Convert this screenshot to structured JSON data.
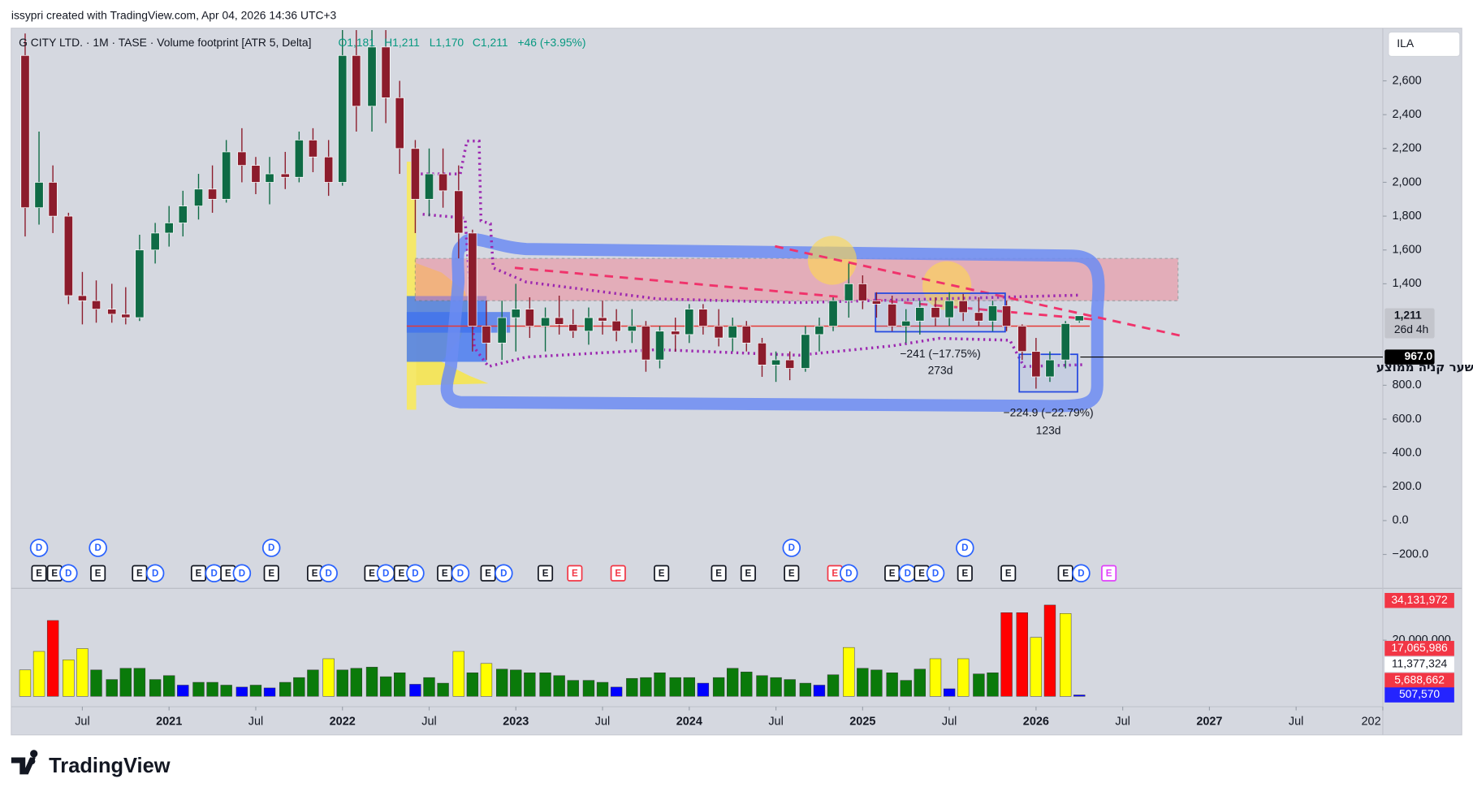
{
  "header": "issypri created with TradingView.com, Apr 04, 2026 14:36 UTC+3",
  "footer_logo": "TradingView",
  "chart_data": {
    "type": "candlestick",
    "title": "G CITY LTD. · 1M · TASE · Volume footprint [ATR 5, Delta]",
    "ohlc_legend": [
      "O1,181",
      "H1,211",
      "L1,170",
      "C1,211"
    ],
    "change": "+46 (+3.95%)",
    "currency": "ILA",
    "up_color": "#0f6b45",
    "down_color": "#8c1c2c",
    "grid": false,
    "x": [
      2020.17,
      2020.25,
      2020.33,
      2020.42,
      2020.5,
      2020.58,
      2020.67,
      2020.75,
      2020.83,
      2020.92,
      2021.0,
      2021.08,
      2021.17,
      2021.25,
      2021.33,
      2021.42,
      2021.5,
      2021.58,
      2021.67,
      2021.75,
      2021.83,
      2021.92,
      2022.0,
      2022.08,
      2022.17,
      2022.25,
      2022.33,
      2022.42,
      2022.5,
      2022.58,
      2022.67,
      2022.75,
      2022.83,
      2022.92,
      2023.0,
      2023.08,
      2023.17,
      2023.25,
      2023.33,
      2023.42,
      2023.5,
      2023.58,
      2023.67,
      2023.75,
      2023.83,
      2023.92,
      2024.0,
      2024.08,
      2024.17,
      2024.25,
      2024.33,
      2024.42,
      2024.5,
      2024.58,
      2024.67,
      2024.75,
      2024.83,
      2024.92,
      2025.0,
      2025.08,
      2025.17,
      2025.25,
      2025.33,
      2025.42,
      2025.5,
      2025.58,
      2025.67,
      2025.75,
      2025.83,
      2025.92,
      2026.0,
      2026.08,
      2026.17,
      2026.25
    ],
    "open": [
      2750,
      1850,
      2000,
      1800,
      1330,
      1300,
      1250,
      1220,
      1200,
      1600,
      1700,
      1760,
      1860,
      1960,
      1900,
      2180,
      2100,
      2000,
      2050,
      2030,
      2250,
      2150,
      2000,
      2750,
      2450,
      2800,
      2500,
      2200,
      1900,
      2050,
      1950,
      1700,
      1150,
      1050,
      1200,
      1250,
      1150,
      1200,
      1160,
      1120,
      1200,
      1180,
      1120,
      1150,
      950,
      1120,
      1100,
      1250,
      1150,
      1080,
      1150,
      1050,
      920,
      950,
      900,
      1100,
      1150,
      1300,
      1400,
      1300,
      1280,
      1150,
      1180,
      1260,
      1200,
      1300,
      1230,
      1180,
      1270,
      1150,
      1000,
      850,
      950,
      1181
    ],
    "high": [
      2880,
      2300,
      2100,
      1820,
      1470,
      1420,
      1400,
      1380,
      1690,
      1760,
      1860,
      1950,
      2050,
      2100,
      2250,
      2320,
      2150,
      2150,
      2180,
      2300,
      2320,
      2250,
      2900,
      2900,
      2900,
      2900,
      2600,
      2250,
      2200,
      2200,
      2100,
      1720,
      1300,
      1300,
      1400,
      1320,
      1260,
      1330,
      1250,
      1260,
      1300,
      1250,
      1250,
      1180,
      1150,
      1200,
      1280,
      1280,
      1250,
      1200,
      1180,
      1080,
      1000,
      1000,
      1150,
      1200,
      1320,
      1520,
      1450,
      1350,
      1330,
      1250,
      1300,
      1320,
      1350,
      1340,
      1320,
      1300,
      1300,
      1160,
      1080,
      1000,
      1180,
      1211
    ],
    "low": [
      1680,
      1750,
      1700,
      1280,
      1160,
      1170,
      1170,
      1160,
      1180,
      1520,
      1620,
      1680,
      1780,
      1820,
      1880,
      2000,
      1930,
      1870,
      1960,
      2000,
      2060,
      1920,
      1980,
      2300,
      2300,
      2350,
      2050,
      1700,
      1800,
      1850,
      1550,
      1000,
      950,
      950,
      1000,
      1080,
      1000,
      1100,
      1080,
      1040,
      1100,
      1060,
      1050,
      880,
      900,
      1000,
      1050,
      1100,
      1030,
      1000,
      1000,
      850,
      820,
      830,
      880,
      1000,
      1120,
      1200,
      1250,
      1200,
      1120,
      1050,
      1100,
      1150,
      1150,
      1180,
      1150,
      1120,
      1120,
      950,
      780,
      820,
      900,
      1170
    ],
    "close": [
      1850,
      2000,
      1800,
      1330,
      1300,
      1250,
      1220,
      1200,
      1600,
      1700,
      1760,
      1860,
      1960,
      1900,
      2180,
      2100,
      2000,
      2050,
      2030,
      2250,
      2150,
      2000,
      2750,
      2450,
      2800,
      2500,
      2200,
      1900,
      2050,
      1950,
      1700,
      1150,
      1050,
      1200,
      1250,
      1150,
      1200,
      1160,
      1120,
      1200,
      1180,
      1120,
      1150,
      950,
      1120,
      1100,
      1250,
      1150,
      1080,
      1150,
      1050,
      920,
      950,
      900,
      1100,
      1150,
      1300,
      1400,
      1300,
      1280,
      1150,
      1180,
      1260,
      1200,
      1300,
      1230,
      1180,
      1270,
      1150,
      1000,
      850,
      950,
      1165,
      1211
    ],
    "xlim": [
      2020.09,
      2028.0
    ],
    "xticks": [
      {
        "value": 2020.5,
        "label": "Jul"
      },
      2021,
      {
        "value": 2021.5,
        "label": "Jul"
      },
      2022,
      {
        "value": 2022.5,
        "label": "Jul"
      },
      2023,
      {
        "value": 2023.5,
        "label": "Jul"
      },
      2024,
      {
        "value": 2024.5,
        "label": "Jul"
      },
      2025,
      {
        "value": 2025.5,
        "label": "Jul"
      },
      2026,
      {
        "value": 2026.5,
        "label": "Jul"
      },
      2027,
      {
        "value": 2027.5,
        "label": "Jul"
      },
      {
        "value": 2028,
        "label": "202"
      }
    ],
    "ylim": [
      -378,
      2911
    ],
    "yticks": [
      {
        "value": -200,
        "label": "−200.0"
      },
      {
        "value": 0,
        "label": "0.0"
      },
      {
        "value": 200,
        "label": "200.0"
      },
      {
        "value": 400,
        "label": "400.0"
      },
      {
        "value": 600,
        "label": "600.0"
      },
      {
        "value": 800,
        "label": "800.0"
      },
      {
        "value": 1400,
        "label": "1,400"
      },
      {
        "value": 1600,
        "label": "1,600"
      },
      {
        "value": 1800,
        "label": "1,800"
      },
      {
        "value": 2000,
        "label": "2,000"
      },
      {
        "value": 2200,
        "label": "2,200"
      },
      {
        "value": 2400,
        "label": "2,400"
      },
      {
        "value": 2600,
        "label": "2,600"
      }
    ],
    "price_lines": [
      {
        "value": 1211,
        "label": "1,211",
        "sublabel": "26d 4h",
        "color": "#c3c5cc"
      },
      {
        "value": 967,
        "label": "967.0",
        "color": "#000000",
        "note": "שער קניה ממוצע"
      }
    ],
    "annotations": [
      "−241 (−17.75%)",
      "273d",
      "−224.9 (−22.79%)",
      "123d"
    ],
    "event_color": "#131722",
    "events_top": [
      {
        "x": 2020.25,
        "label": "D"
      },
      {
        "x": 2020.59,
        "label": "D"
      },
      {
        "x": 2021.59,
        "label": "D"
      },
      {
        "x": 2024.59,
        "label": "D"
      },
      {
        "x": 2025.59,
        "label": "D"
      }
    ],
    "events": [
      {
        "x": 2020.25,
        "label": "E"
      },
      {
        "x": 2020.34,
        "label": "E"
      },
      {
        "x": 2020.42,
        "label": "D"
      },
      {
        "x": 2020.59,
        "label": "E"
      },
      {
        "x": 2020.83,
        "label": "E"
      },
      {
        "x": 2020.92,
        "label": "D"
      },
      {
        "x": 2021.17,
        "label": "E"
      },
      {
        "x": 2021.26,
        "label": "D"
      },
      {
        "x": 2021.34,
        "label": "E"
      },
      {
        "x": 2021.42,
        "label": "D"
      },
      {
        "x": 2021.59,
        "label": "E"
      },
      {
        "x": 2021.84,
        "label": "E"
      },
      {
        "x": 2021.92,
        "label": "D"
      },
      {
        "x": 2022.17,
        "label": "E"
      },
      {
        "x": 2022.25,
        "label": "D"
      },
      {
        "x": 2022.34,
        "label": "E"
      },
      {
        "x": 2022.42,
        "label": "D"
      },
      {
        "x": 2022.59,
        "label": "E"
      },
      {
        "x": 2022.68,
        "label": "D"
      },
      {
        "x": 2022.84,
        "label": "E"
      },
      {
        "x": 2022.93,
        "label": "D"
      },
      {
        "x": 2023.17,
        "label": "E"
      },
      {
        "x": 2023.34,
        "label": "E",
        "color": "#f23645"
      },
      {
        "x": 2023.59,
        "label": "E",
        "color": "#f23645"
      },
      {
        "x": 2023.84,
        "label": "E"
      },
      {
        "x": 2024.17,
        "label": "E"
      },
      {
        "x": 2024.34,
        "label": "E"
      },
      {
        "x": 2024.59,
        "label": "E"
      },
      {
        "x": 2024.84,
        "label": "E",
        "color": "#f23645"
      },
      {
        "x": 2024.92,
        "label": "D"
      },
      {
        "x": 2025.17,
        "label": "E"
      },
      {
        "x": 2025.26,
        "label": "D"
      },
      {
        "x": 2025.34,
        "label": "E"
      },
      {
        "x": 2025.42,
        "label": "D"
      },
      {
        "x": 2025.59,
        "label": "E"
      },
      {
        "x": 2025.84,
        "label": "E"
      },
      {
        "x": 2026.17,
        "label": "E"
      },
      {
        "x": 2026.26,
        "label": "D"
      },
      {
        "x": 2026.42,
        "label": "E",
        "color": "#e040fb"
      }
    ],
    "volume": {
      "values": [
        9400000,
        16000000,
        27000000,
        13000000,
        17000000,
        9400000,
        6000000,
        10000000,
        10000000,
        6000000,
        7400000,
        4000000,
        5000000,
        5000000,
        4000000,
        3300000,
        4000000,
        3000000,
        5000000,
        6700000,
        9400000,
        13400000,
        9400000,
        10000000,
        10400000,
        7000000,
        8400000,
        4300000,
        6700000,
        4700000,
        16000000,
        8400000,
        11700000,
        9700000,
        9400000,
        8400000,
        8400000,
        7400000,
        5700000,
        5700000,
        5000000,
        3300000,
        6400000,
        6700000,
        8400000,
        6700000,
        6700000,
        4700000,
        6700000,
        10000000,
        8700000,
        7400000,
        6700000,
        6000000,
        4700000,
        4000000,
        7700000,
        17400000,
        10000000,
        9400000,
        8400000,
        5700000,
        9700000,
        13400000,
        2700000,
        13400000,
        8000000,
        8400000,
        29800000,
        29800000,
        21000000,
        32500000,
        29500000,
        507570
      ],
      "colors": [
        "#ffff00",
        "#ffff00",
        "#ff0000",
        "#ffff00",
        "#ffff00",
        "#0a7a0a",
        "#0a7a0a",
        "#0a7a0a",
        "#0a7a0a",
        "#0a7a0a",
        "#0a7a0a",
        "#0000ff",
        "#0a7a0a",
        "#0a7a0a",
        "#0a7a0a",
        "#0000ff",
        "#0a7a0a",
        "#0000ff",
        "#0a7a0a",
        "#0a7a0a",
        "#0a7a0a",
        "#ffff00",
        "#0a7a0a",
        "#0a7a0a",
        "#0a7a0a",
        "#0a7a0a",
        "#0a7a0a",
        "#0000ff",
        "#0a7a0a",
        "#0a7a0a",
        "#ffff00",
        "#0a7a0a",
        "#ffff00",
        "#0a7a0a",
        "#0a7a0a",
        "#0a7a0a",
        "#0a7a0a",
        "#0a7a0a",
        "#0a7a0a",
        "#0a7a0a",
        "#0a7a0a",
        "#0000ff",
        "#0a7a0a",
        "#0a7a0a",
        "#0a7a0a",
        "#0a7a0a",
        "#0a7a0a",
        "#0000ff",
        "#0a7a0a",
        "#0a7a0a",
        "#0a7a0a",
        "#0a7a0a",
        "#0a7a0a",
        "#0a7a0a",
        "#0a7a0a",
        "#0000ff",
        "#0a7a0a",
        "#ffff00",
        "#0a7a0a",
        "#0a7a0a",
        "#0a7a0a",
        "#0a7a0a",
        "#0a7a0a",
        "#ffff00",
        "#0000ff",
        "#ffff00",
        "#0a7a0a",
        "#0a7a0a",
        "#ff0000",
        "#ff0000",
        "#ffff00",
        "#ff0000",
        "#ffff00",
        "#0000ff"
      ],
      "ylim": [
        0,
        37800000
      ],
      "yticks": [
        {
          "value": 20000000,
          "label": "20,000,000"
        }
      ],
      "labels": [
        {
          "value": 34131972,
          "label": "34,131,972",
          "color": "#f23645"
        },
        {
          "value": 17065986,
          "label": "17,065,986",
          "color": "#f23645"
        },
        {
          "value": 11377324,
          "label": "11,377,324",
          "color": "#ffffff"
        },
        {
          "value": 5688662,
          "label": "5,688,662",
          "color": "#f23645"
        },
        {
          "value": 507570,
          "label": "507,570",
          "color": "#2424ff"
        }
      ]
    }
  }
}
